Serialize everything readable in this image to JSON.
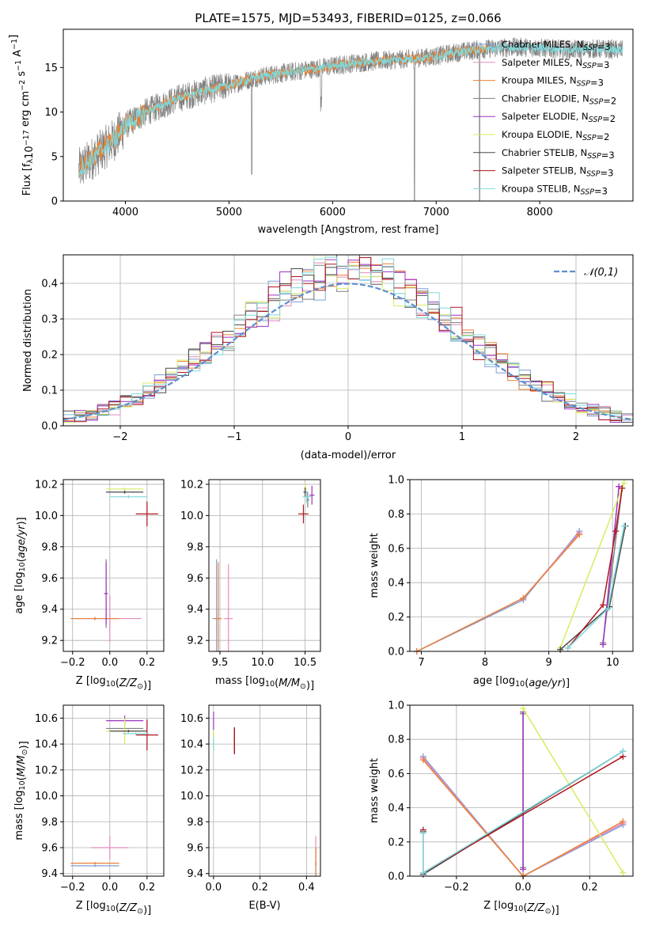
{
  "colors": {
    "chabrier_miles": "#7f9cd4",
    "salpeter_miles": "#e48bc0",
    "kroupa_miles": "#ea8036",
    "chabrier_elodie": "#808080",
    "salpeter_elodie": "#9a34c1",
    "kroupa_elodie": "#d8ec62",
    "chabrier_stelib": "#4a4a4a",
    "salpeter_stelib": "#b0141e",
    "kroupa_stelib": "#7fd8da",
    "normal": "#5f8fd0",
    "grid": "#b0b0b0"
  },
  "chart_data": [
    {
      "id": "spectrum",
      "type": "line",
      "title": "PLATE=1575, MJD=53493, FIBERID=0125, z=0.066",
      "xlabel": "wavelength [Angstrom, rest frame]",
      "ylabel": "Flux [f_λ 10^-17 erg cm^-2 s^-1 A^-1]",
      "xlim": [
        3400,
        8900
      ],
      "ylim": [
        0,
        19.3
      ],
      "xticks": [
        4000,
        5000,
        6000,
        7000,
        8000
      ],
      "yticks": [
        0,
        5,
        10,
        15
      ],
      "grid": false,
      "legend_position": "right",
      "legend": [
        {
          "name": "Chabrier MILES, N_SSP=3",
          "key": "chabrier_miles"
        },
        {
          "name": "Salpeter MILES, N_SSP=3",
          "key": "salpeter_miles"
        },
        {
          "name": "Kroupa MILES, N_SSP=3",
          "key": "kroupa_miles"
        },
        {
          "name": "Chabrier ELODIE, N_SSP=2",
          "key": "chabrier_elodie"
        },
        {
          "name": "Salpeter ELODIE, N_SSP=2",
          "key": "salpeter_elodie"
        },
        {
          "name": "Kroupa ELODIE, N_SSP=2",
          "key": "kroupa_elodie"
        },
        {
          "name": "Chabrier STELIB, N_SSP=3",
          "key": "chabrier_stelib"
        },
        {
          "name": "Salpeter STELIB, N_SSP=3",
          "key": "salpeter_stelib"
        },
        {
          "name": "Kroupa STELIB, N_SSP=3",
          "key": "kroupa_stelib"
        }
      ],
      "continuum": {
        "x": [
          3550,
          3700,
          3900,
          4000,
          4200,
          4500,
          4800,
          5000,
          5300,
          5600,
          5900,
          6200,
          6500,
          6800,
          7000,
          7200,
          7400,
          7600,
          7800,
          8000,
          8300,
          8500,
          8800
        ],
        "y": [
          3.5,
          5.0,
          7.0,
          8.5,
          10.0,
          11.5,
          12.5,
          13.0,
          14.0,
          14.5,
          15.0,
          15.5,
          15.8,
          16.0,
          16.3,
          16.7,
          17.0,
          17.2,
          17.3,
          17.2,
          17.0,
          17.1,
          17.0
        ]
      }
    },
    {
      "id": "residuals",
      "type": "bar",
      "xlabel": "(data-model)/error",
      "ylabel": "Normed distribution",
      "xlim": [
        -2.5,
        2.5
      ],
      "ylim": [
        0,
        0.48
      ],
      "xticks": [
        -2,
        -1,
        0,
        1,
        2
      ],
      "yticks": [
        0.0,
        0.1,
        0.2,
        0.3,
        0.4
      ],
      "grid": true,
      "legend": [
        {
          "name": "𝒩(0,1)",
          "key": "normal"
        }
      ],
      "legend_position": "top-right",
      "bin_width": 0.1
    },
    {
      "id": "age_vs_Z",
      "type": "scatter",
      "xlabel": "Z [log10(Z/Z⊙)]",
      "ylabel": "age  [log10(age/yr)]",
      "xlim": [
        -0.25,
        0.29
      ],
      "ylim": [
        9.13,
        10.23
      ],
      "xticks": [
        -0.2,
        0.0,
        0.2
      ],
      "yticks": [
        9.2,
        9.4,
        9.6,
        9.8,
        10.0,
        10.2
      ],
      "grid": true,
      "errorbars": [
        {
          "key": "chabrier_miles",
          "x": -0.08,
          "xerr": 0.13,
          "y": 9.34,
          "yerr": 0.01
        },
        {
          "key": "salpeter_miles",
          "x": 0.0,
          "xerr": 0.17,
          "y": 9.34,
          "yerr": 0.15
        },
        {
          "key": "kroupa_miles",
          "x": -0.08,
          "xerr": 0.13,
          "y": 9.34,
          "yerr": 0.01
        },
        {
          "key": "chabrier_elodie",
          "x": -0.02,
          "xerr": 0.01,
          "y": 9.5,
          "yerr": 0.22
        },
        {
          "key": "salpeter_elodie",
          "x": -0.02,
          "xerr": 0.01,
          "y": 9.5,
          "yerr": 0.2
        },
        {
          "key": "kroupa_elodie",
          "x": 0.08,
          "xerr": 0.1,
          "y": 10.17,
          "yerr": 0.01
        },
        {
          "key": "chabrier_stelib",
          "x": 0.08,
          "xerr": 0.1,
          "y": 10.15,
          "yerr": 0.01
        },
        {
          "key": "salpeter_stelib",
          "x": 0.2,
          "xerr": 0.06,
          "y": 10.01,
          "yerr": 0.08
        },
        {
          "key": "kroupa_stelib",
          "x": 0.1,
          "xerr": 0.1,
          "y": 10.12,
          "yerr": 0.01
        }
      ]
    },
    {
      "id": "age_vs_mass",
      "type": "scatter",
      "xlabel": "mass [log10(M/M⊙)]",
      "ylabel": "",
      "xlim": [
        9.37,
        10.68
      ],
      "ylim": [
        9.13,
        10.23
      ],
      "xticks": [
        9.5,
        10.0,
        10.5
      ],
      "yticks": [
        9.2,
        9.4,
        9.6,
        9.8,
        10.0,
        10.2
      ],
      "grid": true,
      "errorbars": [
        {
          "key": "chabrier_miles",
          "x": 9.46,
          "xerr": 0.05,
          "y": 9.34,
          "yerr": 0.38
        },
        {
          "key": "salpeter_miles",
          "x": 9.6,
          "xerr": 0.05,
          "y": 9.34,
          "yerr": 0.35
        },
        {
          "key": "kroupa_miles",
          "x": 9.48,
          "xerr": 0.04,
          "y": 9.34,
          "yerr": 0.36
        },
        {
          "key": "chabrier_elodie",
          "x": 10.53,
          "xerr": 0.02,
          "y": 10.1,
          "yerr": 0.05
        },
        {
          "key": "salpeter_elodie",
          "x": 10.58,
          "xerr": 0.03,
          "y": 10.13,
          "yerr": 0.06
        },
        {
          "key": "kroupa_elodie",
          "x": 10.5,
          "xerr": 0.02,
          "y": 10.17,
          "yerr": 0.03
        },
        {
          "key": "chabrier_stelib",
          "x": 10.5,
          "xerr": 0.02,
          "y": 10.15,
          "yerr": 0.03
        },
        {
          "key": "salpeter_stelib",
          "x": 10.48,
          "xerr": 0.06,
          "y": 10.01,
          "yerr": 0.06
        },
        {
          "key": "kroupa_stelib",
          "x": 10.52,
          "xerr": 0.05,
          "y": 10.12,
          "yerr": 0.04
        }
      ]
    },
    {
      "id": "weight_vs_age",
      "type": "line",
      "xlabel": "age  [log10(age/yr)]",
      "ylabel": "mass weight",
      "xlim": [
        6.82,
        10.32
      ],
      "ylim": [
        0,
        1
      ],
      "xticks": [
        7,
        8,
        9,
        10
      ],
      "yticks": [
        0.0,
        0.2,
        0.4,
        0.6,
        0.8,
        1.0
      ],
      "grid": true,
      "series": [
        {
          "key": "chabrier_miles",
          "x": [
            6.93,
            8.6,
            9.48
          ],
          "y": [
            0.0,
            0.3,
            0.7
          ]
        },
        {
          "key": "salpeter_miles",
          "x": [
            6.93,
            8.6,
            9.48
          ],
          "y": [
            0.0,
            0.31,
            0.69
          ]
        },
        {
          "key": "kroupa_miles",
          "x": [
            6.93,
            8.6,
            9.48
          ],
          "y": [
            0.0,
            0.31,
            0.68
          ]
        },
        {
          "key": "chabrier_elodie",
          "x": [
            9.85,
            10.15
          ],
          "y": [
            0.05,
            0.95
          ]
        },
        {
          "key": "salpeter_elodie",
          "x": [
            9.85,
            10.1
          ],
          "y": [
            0.04,
            0.96
          ]
        },
        {
          "key": "kroupa_elodie",
          "x": [
            9.18,
            10.18
          ],
          "y": [
            0.02,
            0.98
          ]
        },
        {
          "key": "chabrier_stelib",
          "x": [
            9.18,
            9.95,
            10.2
          ],
          "y": [
            0.01,
            0.26,
            0.73
          ]
        },
        {
          "key": "salpeter_stelib",
          "x": [
            9.3,
            9.85,
            10.05,
            10.15
          ],
          "y": [
            0.02,
            0.27,
            0.7,
            0.95
          ]
        },
        {
          "key": "kroupa_stelib",
          "x": [
            9.3,
            9.93,
            10.18
          ],
          "y": [
            0.02,
            0.25,
            0.73
          ]
        }
      ]
    },
    {
      "id": "mass_vs_Z",
      "type": "scatter",
      "xlabel": "Z [log10(Z/Z⊙)]",
      "ylabel": "mass [log10(M/M⊙)]",
      "xlim": [
        -0.25,
        0.29
      ],
      "ylim": [
        9.38,
        10.7
      ],
      "xticks": [
        -0.2,
        0.0,
        0.2
      ],
      "yticks": [
        9.4,
        9.6,
        9.8,
        10.0,
        10.2,
        10.4,
        10.6
      ],
      "grid": true,
      "errorbars": [
        {
          "key": "chabrier_miles",
          "x": -0.08,
          "xerr": 0.13,
          "y": 9.46,
          "yerr": 0.01
        },
        {
          "key": "salpeter_miles",
          "x": 0.0,
          "xerr": 0.1,
          "y": 9.6,
          "yerr": 0.09
        },
        {
          "key": "kroupa_miles",
          "x": -0.08,
          "xerr": 0.13,
          "y": 9.48,
          "yerr": 0.01
        },
        {
          "key": "chabrier_elodie",
          "x": 0.08,
          "xerr": 0.1,
          "y": 10.52,
          "yerr": 0.01
        },
        {
          "key": "salpeter_elodie",
          "x": 0.08,
          "xerr": 0.1,
          "y": 10.58,
          "yerr": 0.04
        },
        {
          "key": "kroupa_elodie",
          "x": 0.08,
          "xerr": 0.1,
          "y": 10.5,
          "yerr": 0.1
        },
        {
          "key": "chabrier_stelib",
          "x": 0.1,
          "xerr": 0.1,
          "y": 10.5,
          "yerr": 0.01
        },
        {
          "key": "salpeter_stelib",
          "x": 0.2,
          "xerr": 0.06,
          "y": 10.47,
          "yerr": 0.12
        },
        {
          "key": "kroupa_stelib",
          "x": 0.14,
          "xerr": 0.07,
          "y": 10.48,
          "yerr": 0.01
        }
      ]
    },
    {
      "id": "mass_vs_ebv",
      "type": "scatter",
      "xlabel": "E(B-V)",
      "ylabel": "",
      "xlim": [
        -0.02,
        0.46
      ],
      "ylim": [
        9.38,
        10.7
      ],
      "xticks": [
        0.0,
        0.2,
        0.4
      ],
      "yticks": [
        9.4,
        9.6,
        9.8,
        10.0,
        10.2,
        10.4,
        10.6
      ],
      "grid": true,
      "errorbars": [
        {
          "key": "chabrier_miles",
          "x": 0.44,
          "xerr": 0.003,
          "y": 9.47,
          "yerr": 0.12
        },
        {
          "key": "salpeter_miles",
          "x": 0.44,
          "xerr": 0.003,
          "y": 9.58,
          "yerr": 0.11
        },
        {
          "key": "kroupa_miles",
          "x": 0.44,
          "xerr": 0.003,
          "y": 9.48,
          "yerr": 0.12
        },
        {
          "key": "chabrier_elodie",
          "x": 0.09,
          "xerr": 0.002,
          "y": 10.43,
          "yerr": 0.1
        },
        {
          "key": "salpeter_elodie",
          "x": 0.0,
          "xerr": 0.002,
          "y": 10.55,
          "yerr": 0.1
        },
        {
          "key": "kroupa_elodie",
          "x": 0.0,
          "xerr": 0.002,
          "y": 10.43,
          "yerr": 0.08
        },
        {
          "key": "chabrier_stelib",
          "x": 0.09,
          "xerr": 0.002,
          "y": 10.43,
          "yerr": 0.1
        },
        {
          "key": "salpeter_stelib",
          "x": 0.09,
          "xerr": 0.002,
          "y": 10.42,
          "yerr": 0.1
        },
        {
          "key": "kroupa_stelib",
          "x": 0.0,
          "xerr": 0.002,
          "y": 10.4,
          "yerr": 0.05
        }
      ]
    },
    {
      "id": "weight_vs_Z",
      "type": "line",
      "xlabel": "Z [log10(Z/Z⊙)]",
      "ylabel": "mass weight",
      "xlim": [
        -0.34,
        0.33
      ],
      "ylim": [
        0,
        1
      ],
      "xticks": [
        -0.2,
        0.0,
        0.2
      ],
      "yticks": [
        0.0,
        0.2,
        0.4,
        0.6,
        0.8,
        1.0
      ],
      "grid": true,
      "series": [
        {
          "key": "chabrier_miles",
          "x": [
            -0.3,
            0.0,
            0.3
          ],
          "y": [
            0.7,
            0.0,
            0.3
          ]
        },
        {
          "key": "salpeter_miles",
          "x": [
            -0.3,
            0.0,
            0.3
          ],
          "y": [
            0.69,
            0.0,
            0.31
          ]
        },
        {
          "key": "kroupa_miles",
          "x": [
            -0.3,
            0.0,
            0.3
          ],
          "y": [
            0.68,
            0.0,
            0.32
          ]
        },
        {
          "key": "chabrier_elodie",
          "x": [
            0.0,
            0.0
          ],
          "y": [
            0.05,
            0.95
          ]
        },
        {
          "key": "salpeter_elodie",
          "x": [
            0.0,
            0.0
          ],
          "y": [
            0.04,
            0.96
          ]
        },
        {
          "key": "kroupa_elodie",
          "x": [
            0.0,
            0.3
          ],
          "y": [
            0.98,
            0.02
          ]
        },
        {
          "key": "chabrier_stelib",
          "x": [
            -0.3,
            -0.3,
            0.3
          ],
          "y": [
            0.26,
            0.01,
            0.73
          ]
        },
        {
          "key": "salpeter_stelib",
          "x": [
            -0.3,
            -0.3,
            0.3
          ],
          "y": [
            0.27,
            0.02,
            0.7
          ]
        },
        {
          "key": "kroupa_stelib",
          "x": [
            -0.3,
            -0.3,
            0.3
          ],
          "y": [
            0.25,
            0.02,
            0.73
          ]
        }
      ]
    }
  ]
}
